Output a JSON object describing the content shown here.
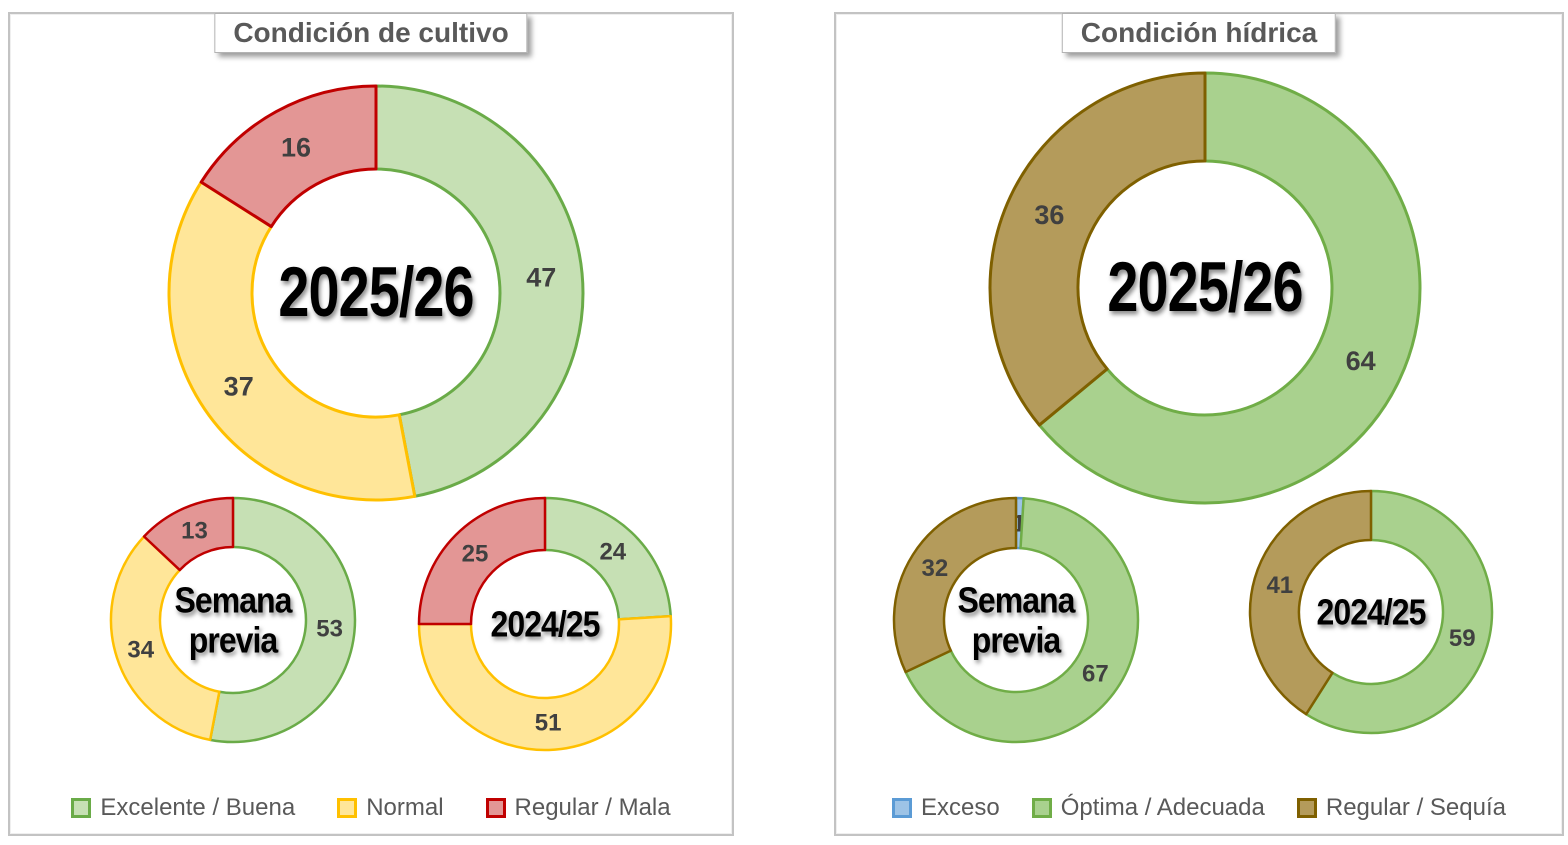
{
  "colors": {
    "green_pale": {
      "fill": "#c6e0b4",
      "stroke": "#6aab48"
    },
    "green": {
      "fill": "#a9d18e",
      "stroke": "#70ad47"
    },
    "yellow": {
      "fill": "#ffe699",
      "stroke": "#ffc000"
    },
    "red": {
      "fill": "#e39695",
      "stroke": "#c00000"
    },
    "olive": {
      "fill": "#b49b5b",
      "stroke": "#7f6000"
    },
    "blue": {
      "fill": "#9dc3e6",
      "stroke": "#5b9bd5"
    },
    "title_text": "#595959",
    "legend_text": "#595959",
    "value_label": "#404040",
    "center_label": "#000000"
  },
  "panels": [
    {
      "title": "Condición de cultivo",
      "legend": [
        {
          "label": "Excelente / Buena",
          "color": "green_pale"
        },
        {
          "label": "Normal",
          "color": "yellow"
        },
        {
          "label": "Regular / Mala",
          "color": "red"
        }
      ],
      "donuts": [
        {
          "name": "current-season",
          "center_label": "2025/26",
          "segments": [
            {
              "label": "Excelente / Buena",
              "color": "green_pale",
              "value": 47
            },
            {
              "label": "Normal",
              "color": "yellow",
              "value": 37
            },
            {
              "label": "Regular / Mala",
              "color": "red",
              "value": 16
            }
          ]
        },
        {
          "name": "previous-week",
          "center_label": "Semana\nprevia",
          "segments": [
            {
              "label": "Excelente / Buena",
              "color": "green_pale",
              "value": 53
            },
            {
              "label": "Normal",
              "color": "yellow",
              "value": 34
            },
            {
              "label": "Regular / Mala",
              "color": "red",
              "value": 13
            }
          ]
        },
        {
          "name": "previous-season",
          "center_label": "2024/25",
          "segments": [
            {
              "label": "Excelente / Buena",
              "color": "green_pale",
              "value": 24
            },
            {
              "label": "Normal",
              "color": "yellow",
              "value": 51
            },
            {
              "label": "Regular / Mala",
              "color": "red",
              "value": 25
            }
          ]
        }
      ]
    },
    {
      "title": "Condición hídrica",
      "legend": [
        {
          "label": "Exceso",
          "color": "blue"
        },
        {
          "label": "Óptima / Adecuada",
          "color": "green"
        },
        {
          "label": "Regular / Sequía",
          "color": "olive"
        }
      ],
      "donuts": [
        {
          "name": "current-season",
          "center_label": "2025/26",
          "segments": [
            {
              "label": "Óptima / Adecuada",
              "color": "green",
              "value": 64
            },
            {
              "label": "Regular / Sequía",
              "color": "olive",
              "value": 36
            }
          ]
        },
        {
          "name": "previous-week",
          "center_label": "Semana\nprevia",
          "segments": [
            {
              "label": "Exceso",
              "color": "blue",
              "value": 1
            },
            {
              "label": "Óptima / Adecuada",
              "color": "green",
              "value": 67
            },
            {
              "label": "Regular / Sequía",
              "color": "olive",
              "value": 32
            }
          ]
        },
        {
          "name": "previous-season",
          "center_label": "2024/25",
          "segments": [
            {
              "label": "Óptima / Adecuada",
              "color": "green",
              "value": 59
            },
            {
              "label": "Regular / Sequía",
              "color": "olive",
              "value": 41
            }
          ]
        }
      ]
    }
  ],
  "chart_data": [
    {
      "type": "pie",
      "subtype": "donut-group",
      "title": "Condición de cultivo",
      "legend": [
        "Excelente / Buena",
        "Normal",
        "Regular / Mala"
      ],
      "legend_position": "bottom",
      "donuts": [
        {
          "name": "2025/26",
          "categories": [
            "Excelente / Buena",
            "Normal",
            "Regular / Mala"
          ],
          "values": [
            47,
            37,
            16
          ]
        },
        {
          "name": "Semana previa",
          "categories": [
            "Excelente / Buena",
            "Normal",
            "Regular / Mala"
          ],
          "values": [
            53,
            34,
            13
          ]
        },
        {
          "name": "2024/25",
          "categories": [
            "Excelente / Buena",
            "Normal",
            "Regular / Mala"
          ],
          "values": [
            24,
            51,
            25
          ]
        }
      ]
    },
    {
      "type": "pie",
      "subtype": "donut-group",
      "title": "Condición hídrica",
      "legend": [
        "Exceso",
        "Óptima / Adecuada",
        "Regular / Sequía"
      ],
      "legend_position": "bottom",
      "donuts": [
        {
          "name": "2025/26",
          "categories": [
            "Óptima / Adecuada",
            "Regular / Sequía"
          ],
          "values": [
            64,
            36
          ]
        },
        {
          "name": "Semana previa",
          "categories": [
            "Exceso",
            "Óptima / Adecuada",
            "Regular / Sequía"
          ],
          "values": [
            1,
            67,
            32
          ]
        },
        {
          "name": "2024/25",
          "categories": [
            "Óptima / Adecuada",
            "Regular / Sequía"
          ],
          "values": [
            59,
            41
          ]
        }
      ]
    }
  ]
}
